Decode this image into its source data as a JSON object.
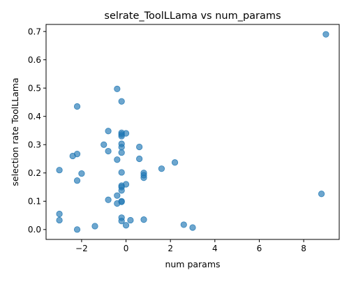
{
  "chart_data": {
    "type": "scatter",
    "title": "selrate_ToolLLama vs num_params",
    "xlabel": "num params",
    "ylabel": "selection rate ToolLLama",
    "xlim": [
      -3.6,
      9.6
    ],
    "ylim": [
      -0.035,
      0.725
    ],
    "xticks": [
      -2,
      0,
      2,
      4,
      6,
      8
    ],
    "xtick_labels": [
      "−2",
      "0",
      "2",
      "4",
      "6",
      "8"
    ],
    "yticks": [
      0.0,
      0.1,
      0.2,
      0.3,
      0.4,
      0.5,
      0.6,
      0.7
    ],
    "ytick_labels": [
      "0.0",
      "0.1",
      "0.2",
      "0.3",
      "0.4",
      "0.5",
      "0.6",
      "0.7"
    ],
    "grid": false,
    "marker_color": "#1f77b4",
    "marker_alpha": 0.65,
    "points": [
      {
        "x": -3.0,
        "y": 0.21
      },
      {
        "x": -3.0,
        "y": 0.055
      },
      {
        "x": -3.0,
        "y": 0.033
      },
      {
        "x": -2.4,
        "y": 0.26
      },
      {
        "x": -2.2,
        "y": 0.435
      },
      {
        "x": -2.2,
        "y": 0.267
      },
      {
        "x": -2.2,
        "y": 0.173
      },
      {
        "x": -2.2,
        "y": 0.0
      },
      {
        "x": -2.0,
        "y": 0.198
      },
      {
        "x": -1.4,
        "y": 0.012
      },
      {
        "x": -1.0,
        "y": 0.3
      },
      {
        "x": -0.8,
        "y": 0.348
      },
      {
        "x": -0.8,
        "y": 0.277
      },
      {
        "x": -0.8,
        "y": 0.105
      },
      {
        "x": -0.4,
        "y": 0.497
      },
      {
        "x": -0.4,
        "y": 0.247
      },
      {
        "x": -0.4,
        "y": 0.12
      },
      {
        "x": -0.4,
        "y": 0.092
      },
      {
        "x": -0.2,
        "y": 0.453
      },
      {
        "x": -0.2,
        "y": 0.342
      },
      {
        "x": -0.2,
        "y": 0.336
      },
      {
        "x": -0.2,
        "y": 0.33
      },
      {
        "x": -0.2,
        "y": 0.303
      },
      {
        "x": -0.2,
        "y": 0.291
      },
      {
        "x": -0.2,
        "y": 0.272
      },
      {
        "x": -0.2,
        "y": 0.202
      },
      {
        "x": -0.2,
        "y": 0.155
      },
      {
        "x": -0.2,
        "y": 0.15
      },
      {
        "x": -0.2,
        "y": 0.138
      },
      {
        "x": -0.2,
        "y": 0.1
      },
      {
        "x": -0.2,
        "y": 0.098
      },
      {
        "x": -0.2,
        "y": 0.042
      },
      {
        "x": -0.2,
        "y": 0.03
      },
      {
        "x": 0.0,
        "y": 0.34
      },
      {
        "x": 0.0,
        "y": 0.16
      },
      {
        "x": 0.0,
        "y": 0.015
      },
      {
        "x": 0.2,
        "y": 0.033
      },
      {
        "x": 0.6,
        "y": 0.292
      },
      {
        "x": 0.6,
        "y": 0.25
      },
      {
        "x": 0.8,
        "y": 0.2
      },
      {
        "x": 0.8,
        "y": 0.192
      },
      {
        "x": 0.8,
        "y": 0.183
      },
      {
        "x": 0.8,
        "y": 0.035
      },
      {
        "x": 1.6,
        "y": 0.215
      },
      {
        "x": 2.2,
        "y": 0.237
      },
      {
        "x": 2.6,
        "y": 0.017
      },
      {
        "x": 3.0,
        "y": 0.007
      },
      {
        "x": 8.8,
        "y": 0.126
      },
      {
        "x": 9.0,
        "y": 0.69
      }
    ]
  }
}
